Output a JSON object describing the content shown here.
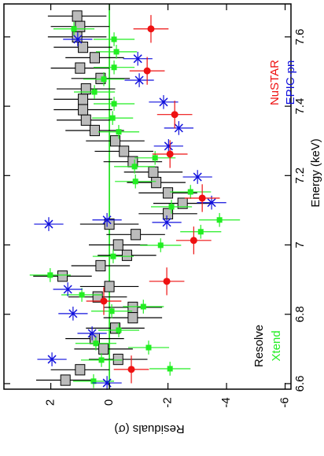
{
  "chart_data": {
    "type": "scatter",
    "x_label": "Energy (keV)",
    "y_label": "Residuals (σ)",
    "xlim": [
      6.584,
      7.695
    ],
    "ylim": [
      3.6,
      -6.2
    ],
    "xticks": [
      6.6,
      6.8,
      7,
      7.2,
      7.4,
      7.6
    ],
    "yticks": [
      2,
      0,
      -2,
      -4,
      -6
    ],
    "reference_line": {
      "value": 0,
      "color": "#00dd00"
    },
    "series": [
      {
        "name": "Resolve",
        "color": "#000000",
        "marker": "box",
        "x": [
          6.61,
          6.64,
          6.67,
          6.7,
          6.73,
          6.76,
          6.79,
          6.82,
          6.85,
          6.88,
          6.91,
          6.94,
          6.97,
          7.0,
          7.03,
          7.06,
          7.09,
          7.12,
          7.15,
          7.18,
          7.21,
          7.24,
          7.27,
          7.3,
          7.33,
          7.36,
          7.39,
          7.42,
          7.45,
          7.48,
          7.51,
          7.54,
          7.57,
          7.6,
          7.63,
          7.66
        ],
        "values": [
          1.5,
          1.0,
          -0.3,
          0.2,
          0.5,
          -0.2,
          -0.8,
          -0.8,
          0.4,
          0,
          1.6,
          0.3,
          -0.6,
          -0.3,
          -0.9,
          0,
          -2.0,
          -2.5,
          -2.0,
          -1.6,
          -1.5,
          -0.8,
          -0.5,
          -0.2,
          0.5,
          0.8,
          0.9,
          0.9,
          0.8,
          0.3,
          1.0,
          0.5,
          0.9,
          1.1,
          1.0,
          1.1
        ],
        "xerr": [
          0.015,
          0.015,
          0.015,
          0.015,
          0.015,
          0.015,
          0.015,
          0.015,
          0.015,
          0.015,
          0.015,
          0.015,
          0.015,
          0.015,
          0.015,
          0.015,
          0.015,
          0.015,
          0.015,
          0.015,
          0.015,
          0.015,
          0.015,
          0.015,
          0.015,
          0.015,
          0.015,
          0.015,
          0.015,
          0.015,
          0.015,
          0.015,
          0.015,
          0.015,
          0.015,
          0.015
        ],
        "yerr": [
          1,
          1,
          1,
          1,
          1,
          1,
          1,
          1,
          1,
          1,
          1,
          1,
          1,
          1,
          1,
          1,
          1,
          1,
          1,
          1,
          1,
          1,
          1,
          1,
          1,
          1,
          1,
          1,
          1,
          1,
          1,
          1,
          1,
          1,
          1,
          1
        ]
      },
      {
        "name": "Xtend",
        "color": "#22ee22",
        "marker": "square",
        "x": [
          6.607,
          6.643,
          6.668,
          6.704,
          6.716,
          6.754,
          6.809,
          6.822,
          6.856,
          6.913,
          6.967,
          6.999,
          7.038,
          7.072,
          7.11,
          7.153,
          7.183,
          7.226,
          7.251,
          7.326,
          7.366,
          7.407,
          7.441,
          7.478,
          7.512,
          7.557,
          7.593,
          7.623
        ],
        "values": [
          0.54,
          -2.07,
          0.27,
          -1.34,
          0.46,
          -0.32,
          -0.08,
          -1.16,
          0.94,
          2.02,
          -0.13,
          -1.75,
          -3.12,
          -3.76,
          -2.12,
          -2.77,
          -0.89,
          -0.86,
          -1.56,
          -0.32,
          -0.11,
          -0.16,
          0.51,
          0.19,
          -0.16,
          -0.24,
          -0.16,
          1.21
        ],
        "xerr": [
          0.02,
          0.02,
          0.02,
          0.02,
          0.02,
          0.02,
          0.02,
          0.02,
          0.02,
          0.02,
          0.02,
          0.02,
          0.02,
          0.02,
          0.02,
          0.02,
          0.02,
          0.02,
          0.02,
          0.02,
          0.02,
          0.02,
          0.02,
          0.02,
          0.02,
          0.02,
          0.02,
          0.02
        ],
        "yerr": [
          0.7,
          0.7,
          0.7,
          0.7,
          0.7,
          0.7,
          0.7,
          0.7,
          0.7,
          0.7,
          0.7,
          0.7,
          0.7,
          0.7,
          0.7,
          0.7,
          0.7,
          0.7,
          0.7,
          0.7,
          0.7,
          0.7,
          0.7,
          0.7,
          0.7,
          0.7,
          0.7,
          0.7
        ]
      },
      {
        "name": "EPIC-pn",
        "color": "#1010dd",
        "marker": "cross",
        "x": [
          6.602,
          6.67,
          6.745,
          6.802,
          6.872,
          7.06,
          7.065,
          7.072,
          7.122,
          7.196,
          7.285,
          7.337,
          7.412,
          7.475,
          7.537,
          7.593
        ],
        "values": [
          0.08,
          1.96,
          0.59,
          1.24,
          1.42,
          2.07,
          -1.96,
          0.08,
          -3.49,
          -3.01,
          -2.02,
          -2.37,
          -1.85,
          -1.02,
          -0.97,
          1.08
        ],
        "xerr": [
          0.02,
          0.02,
          0.02,
          0.02,
          0.02,
          0.02,
          0.02,
          0.02,
          0.02,
          0.02,
          0.02,
          0.02,
          0.02,
          0.02,
          0.02,
          0.02
        ],
        "yerr": [
          0.5,
          0.5,
          0.5,
          0.5,
          0.5,
          0.5,
          0.5,
          0.5,
          0.5,
          0.5,
          0.5,
          0.5,
          0.5,
          0.5,
          0.5,
          0.5
        ]
      },
      {
        "name": "NuSTAR",
        "color": "#ee1111",
        "marker": "circle",
        "x": [
          6.641,
          6.838,
          6.895,
          7.013,
          7.135,
          7.262,
          7.376,
          7.502,
          7.623
        ],
        "values": [
          -0.75,
          0.19,
          -1.96,
          -2.88,
          -3.17,
          -2.07,
          -2.23,
          -1.29,
          -1.42
        ],
        "xerr": [
          0.04,
          0.04,
          0.04,
          0.04,
          0.04,
          0.04,
          0.04,
          0.04,
          0.04
        ],
        "yerr": [
          0.6,
          0.6,
          0.6,
          0.6,
          0.6,
          0.6,
          0.6,
          0.6,
          0.6
        ]
      }
    ]
  }
}
